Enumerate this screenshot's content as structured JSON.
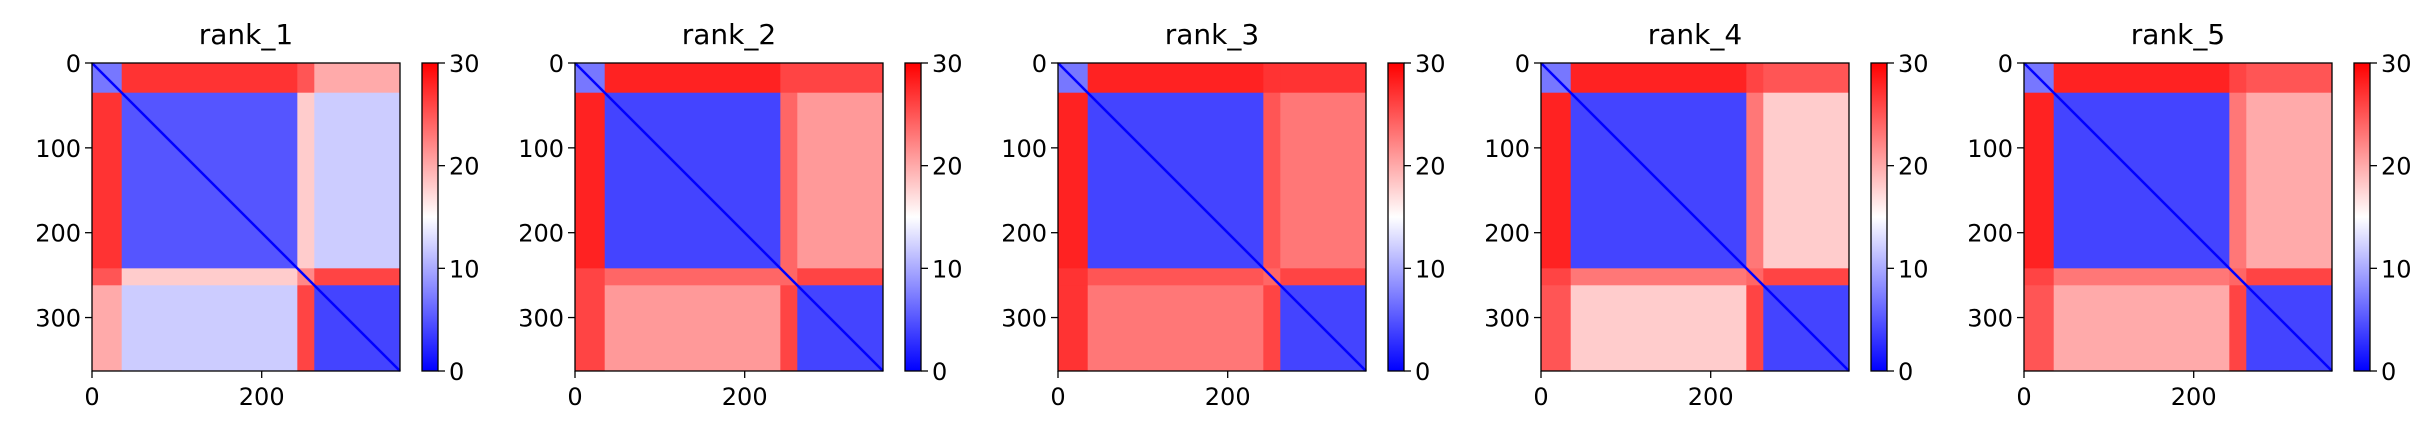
{
  "chart_data": [
    {
      "type": "heatmap",
      "title": "rank_1",
      "xlim": [
        0,
        363
      ],
      "ylim": [
        363,
        0
      ],
      "x_ticks": [
        "0",
        "200"
      ],
      "y_ticks": [
        "0",
        "100",
        "200",
        "300"
      ],
      "colorbar": {
        "min": 0,
        "max": 30,
        "ticks": [
          "0",
          "10",
          "20",
          "30"
        ],
        "colormap": "bwr"
      },
      "block_boundaries": [
        35,
        242,
        262
      ],
      "block_values": [
        [
          7,
          27,
          25,
          20
        ],
        [
          27,
          5,
          18,
          12
        ],
        [
          25,
          18,
          22,
          26
        ],
        [
          20,
          12,
          26,
          4
        ]
      ],
      "center_value": 15
    },
    {
      "type": "heatmap",
      "title": "rank_2",
      "xlim": [
        0,
        363
      ],
      "ylim": [
        363,
        0
      ],
      "x_ticks": [
        "0",
        "200"
      ],
      "y_ticks": [
        "0",
        "100",
        "200",
        "300"
      ],
      "colorbar": {
        "min": 0,
        "max": 30,
        "ticks": [
          "0",
          "10",
          "20",
          "30"
        ],
        "colormap": "bwr"
      },
      "block_boundaries": [
        35,
        242,
        262
      ],
      "block_values": [
        [
          7,
          28,
          26,
          26
        ],
        [
          28,
          4,
          24,
          21
        ],
        [
          26,
          24,
          24,
          26
        ],
        [
          26,
          21,
          26,
          4
        ]
      ],
      "center_value": 15
    },
    {
      "type": "heatmap",
      "title": "rank_3",
      "xlim": [
        0,
        363
      ],
      "ylim": [
        363,
        0
      ],
      "x_ticks": [
        "0",
        "200"
      ],
      "y_ticks": [
        "0",
        "100",
        "200",
        "300"
      ],
      "colorbar": {
        "min": 0,
        "max": 30,
        "ticks": [
          "0",
          "10",
          "20",
          "30"
        ],
        "colormap": "bwr"
      },
      "block_boundaries": [
        35,
        242,
        262
      ],
      "block_values": [
        [
          7,
          28,
          27,
          27
        ],
        [
          28,
          4,
          25,
          23
        ],
        [
          27,
          25,
          24,
          26
        ],
        [
          27,
          23,
          26,
          4
        ]
      ],
      "center_value": 15
    },
    {
      "type": "heatmap",
      "title": "rank_4",
      "xlim": [
        0,
        363
      ],
      "ylim": [
        363,
        0
      ],
      "x_ticks": [
        "0",
        "200"
      ],
      "y_ticks": [
        "0",
        "100",
        "200",
        "300"
      ],
      "colorbar": {
        "min": 0,
        "max": 30,
        "ticks": [
          "0",
          "10",
          "20",
          "30"
        ],
        "colormap": "bwr"
      },
      "block_boundaries": [
        35,
        242,
        262
      ],
      "block_values": [
        [
          7,
          28,
          26,
          25
        ],
        [
          28,
          4,
          23,
          18
        ],
        [
          26,
          23,
          24,
          26
        ],
        [
          25,
          18,
          26,
          4
        ]
      ],
      "center_value": 15
    },
    {
      "type": "heatmap",
      "title": "rank_5",
      "xlim": [
        0,
        363
      ],
      "ylim": [
        363,
        0
      ],
      "x_ticks": [
        "0",
        "200"
      ],
      "y_ticks": [
        "0",
        "100",
        "200",
        "300"
      ],
      "colorbar": {
        "min": 0,
        "max": 30,
        "ticks": [
          "0",
          "10",
          "20",
          "30"
        ],
        "colormap": "bwr"
      },
      "block_boundaries": [
        35,
        242,
        262
      ],
      "block_values": [
        [
          7,
          28,
          26,
          25
        ],
        [
          28,
          4,
          23,
          20
        ],
        [
          26,
          23,
          24,
          26
        ],
        [
          25,
          20,
          26,
          4
        ]
      ],
      "center_value": 15
    }
  ]
}
